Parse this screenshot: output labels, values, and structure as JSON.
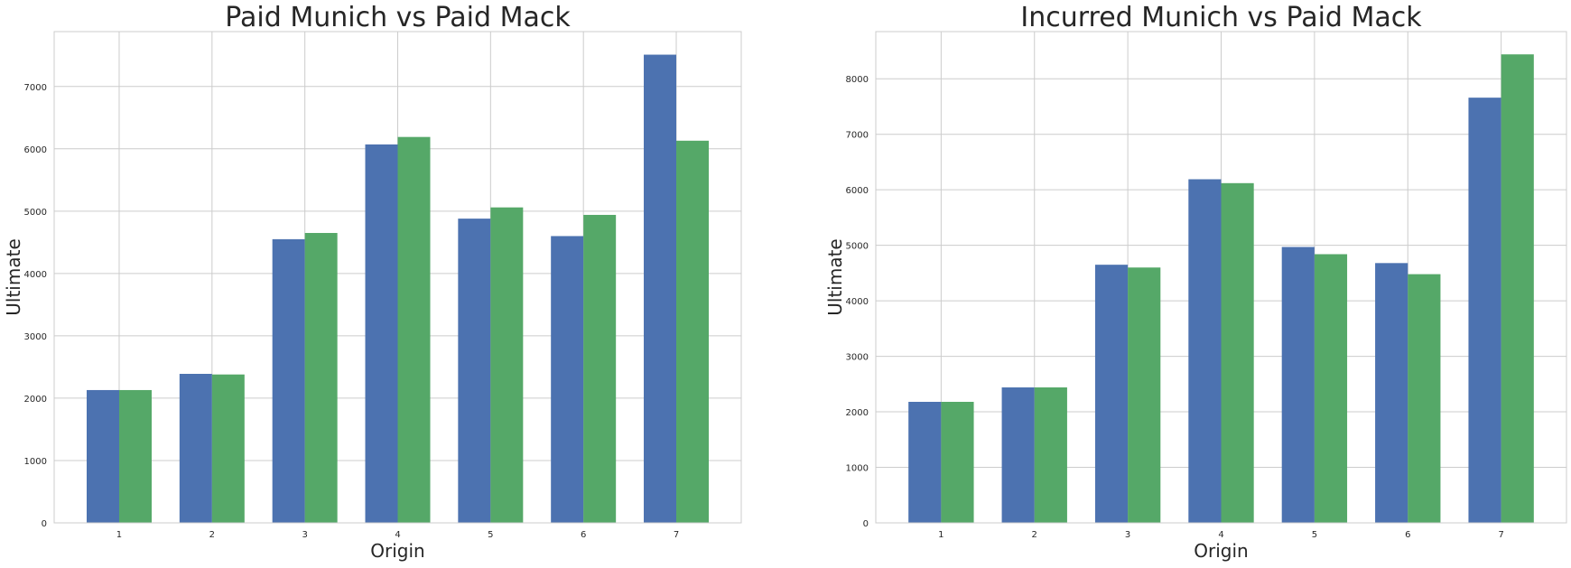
{
  "chart_data": [
    {
      "type": "bar",
      "title": "Paid Munich vs Paid Mack",
      "xlabel": "Origin",
      "ylabel": "Ultimate",
      "categories": [
        "1",
        "2",
        "3",
        "4",
        "5",
        "6",
        "7"
      ],
      "ylim": [
        0,
        7880
      ],
      "yticks": [
        "0",
        "1000",
        "2000",
        "3000",
        "4000",
        "5000",
        "6000",
        "7000"
      ],
      "grid": true,
      "series": [
        {
          "color": "#4c72b0",
          "values": [
            2130,
            2390,
            4550,
            6070,
            4880,
            4600,
            7510
          ]
        },
        {
          "color": "#55a868",
          "values": [
            2130,
            2380,
            4650,
            6190,
            5060,
            4940,
            6130
          ]
        }
      ]
    },
    {
      "type": "bar",
      "title": "Incurred Munich vs Paid Mack",
      "xlabel": "Origin",
      "ylabel": "Ultimate",
      "categories": [
        "1",
        "2",
        "3",
        "4",
        "5",
        "6",
        "7"
      ],
      "ylim": [
        0,
        8850
      ],
      "yticks": [
        "0",
        "1000",
        "2000",
        "3000",
        "4000",
        "5000",
        "6000",
        "7000",
        "8000"
      ],
      "grid": true,
      "series": [
        {
          "color": "#4c72b0",
          "values": [
            2180,
            2440,
            4650,
            6190,
            4970,
            4680,
            7660
          ]
        },
        {
          "color": "#55a868",
          "values": [
            2180,
            2440,
            4600,
            6120,
            4840,
            4480,
            8440
          ]
        }
      ]
    }
  ]
}
